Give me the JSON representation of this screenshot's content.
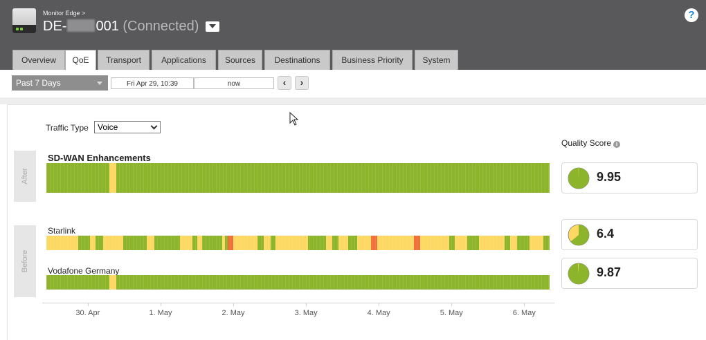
{
  "header": {
    "breadcrumb": "Monitor Edge >",
    "device_prefix": "DE-",
    "device_suffix": "001",
    "status": "(Connected)",
    "help_icon": "?"
  },
  "tabs": [
    {
      "label": "Overview",
      "active": false
    },
    {
      "label": "QoE",
      "active": true
    },
    {
      "label": "Transport",
      "active": false
    },
    {
      "label": "Applications",
      "active": false
    },
    {
      "label": "Sources",
      "active": false
    },
    {
      "label": "Destinations",
      "active": false
    },
    {
      "label": "Business Priority",
      "active": false
    },
    {
      "label": "System",
      "active": false
    }
  ],
  "toolbar": {
    "range": "Past 7 Days",
    "start": "Fri Apr 29, 10:39",
    "end": "now",
    "prev_icon": "chevron-left-icon",
    "next_icon": "chevron-right-icon"
  },
  "traffic": {
    "label": "Traffic Type",
    "value": "Voice"
  },
  "quality_label": "Quality Score",
  "sections": {
    "after": "After",
    "before": "Before"
  },
  "links": [
    {
      "name": "SD-WAN Enhancements",
      "score": "9.95",
      "score_fraction": 0.995,
      "segments": [
        {
          "status": "good",
          "start": 0.0,
          "end": 0.125
        },
        {
          "status": "fair",
          "start": 0.125,
          "end": 0.139
        },
        {
          "status": "good",
          "start": 0.139,
          "end": 1.0
        }
      ]
    },
    {
      "name": "Starlink",
      "score": "6.4",
      "score_fraction": 0.64,
      "segments": [
        {
          "status": "fair",
          "start": 0.0,
          "end": 0.063
        },
        {
          "status": "good",
          "start": 0.063,
          "end": 0.087
        },
        {
          "status": "fair",
          "start": 0.087,
          "end": 0.098
        },
        {
          "status": "good",
          "start": 0.098,
          "end": 0.113
        },
        {
          "status": "fair",
          "start": 0.113,
          "end": 0.153
        },
        {
          "status": "good",
          "start": 0.153,
          "end": 0.2
        },
        {
          "status": "fair",
          "start": 0.2,
          "end": 0.215
        },
        {
          "status": "good",
          "start": 0.215,
          "end": 0.265
        },
        {
          "status": "fair",
          "start": 0.265,
          "end": 0.29
        },
        {
          "status": "good",
          "start": 0.29,
          "end": 0.3
        },
        {
          "status": "fair",
          "start": 0.3,
          "end": 0.31
        },
        {
          "status": "good",
          "start": 0.31,
          "end": 0.35
        },
        {
          "status": "fair",
          "start": 0.35,
          "end": 0.355
        },
        {
          "status": "good",
          "start": 0.355,
          "end": 0.36
        },
        {
          "status": "poor",
          "start": 0.36,
          "end": 0.371
        },
        {
          "status": "fair",
          "start": 0.371,
          "end": 0.42
        },
        {
          "status": "good",
          "start": 0.42,
          "end": 0.432
        },
        {
          "status": "fair",
          "start": 0.432,
          "end": 0.445
        },
        {
          "status": "good",
          "start": 0.445,
          "end": 0.455
        },
        {
          "status": "fair",
          "start": 0.455,
          "end": 0.52
        },
        {
          "status": "good",
          "start": 0.52,
          "end": 0.556
        },
        {
          "status": "fair",
          "start": 0.556,
          "end": 0.568
        },
        {
          "status": "good",
          "start": 0.568,
          "end": 0.58
        },
        {
          "status": "fair",
          "start": 0.58,
          "end": 0.6
        },
        {
          "status": "good",
          "start": 0.6,
          "end": 0.618
        },
        {
          "status": "fair",
          "start": 0.618,
          "end": 0.645
        },
        {
          "status": "poor",
          "start": 0.645,
          "end": 0.658
        },
        {
          "status": "fair",
          "start": 0.658,
          "end": 0.73
        },
        {
          "status": "poor",
          "start": 0.73,
          "end": 0.743
        },
        {
          "status": "fair",
          "start": 0.743,
          "end": 0.8
        },
        {
          "status": "good",
          "start": 0.8,
          "end": 0.812
        },
        {
          "status": "fair",
          "start": 0.812,
          "end": 0.836
        },
        {
          "status": "good",
          "start": 0.836,
          "end": 0.86
        },
        {
          "status": "fair",
          "start": 0.86,
          "end": 0.91
        },
        {
          "status": "good",
          "start": 0.91,
          "end": 0.922
        },
        {
          "status": "fair",
          "start": 0.922,
          "end": 0.935
        },
        {
          "status": "good",
          "start": 0.935,
          "end": 0.96
        },
        {
          "status": "fair",
          "start": 0.96,
          "end": 0.988
        },
        {
          "status": "good",
          "start": 0.988,
          "end": 1.0
        }
      ]
    },
    {
      "name": "Vodafone Germany",
      "score": "9.87",
      "score_fraction": 0.987,
      "segments": [
        {
          "status": "good",
          "start": 0.0,
          "end": 0.125
        },
        {
          "status": "fair",
          "start": 0.125,
          "end": 0.139
        },
        {
          "status": "good",
          "start": 0.139,
          "end": 1.0
        }
      ]
    }
  ],
  "x_axis": {
    "labels": [
      "30. Apr",
      "1. May",
      "2. May",
      "3. May",
      "4. May",
      "5. May",
      "6. May"
    ],
    "positions": [
      0.089,
      0.231,
      0.373,
      0.515,
      0.657,
      0.799,
      0.941
    ]
  },
  "colors": {
    "good": "#8db52c",
    "fair": "#fdd963",
    "poor": "#f0703a",
    "header": "#59595b"
  }
}
